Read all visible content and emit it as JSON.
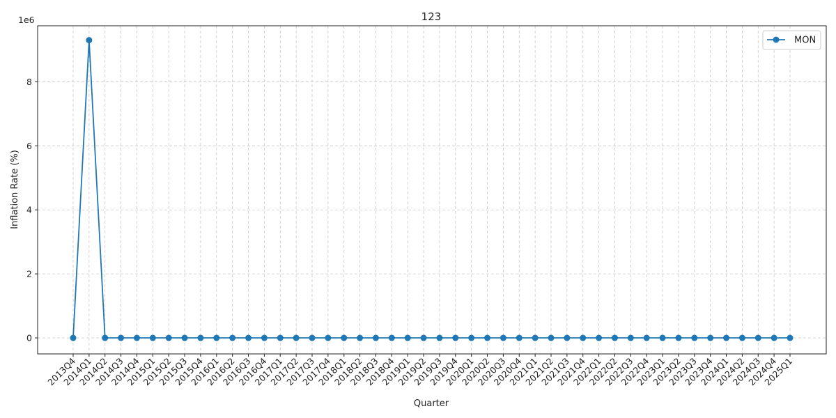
{
  "chart_data": {
    "type": "line",
    "title": "123",
    "xlabel": "Quarter",
    "ylabel": "Inflation Rate (%)",
    "y_multiplier_label": "1e6",
    "y_multiplier": 1000000,
    "ylim": [
      -500000,
      9750000
    ],
    "yticks": [
      0,
      2000000,
      4000000,
      6000000,
      8000000
    ],
    "ytick_labels": [
      "0",
      "2",
      "4",
      "6",
      "8"
    ],
    "grid": true,
    "legend_position": "top-right",
    "categories": [
      "2013Q4",
      "2014Q1",
      "2014Q2",
      "2014Q3",
      "2014Q4",
      "2015Q1",
      "2015Q2",
      "2015Q3",
      "2015Q4",
      "2016Q1",
      "2016Q2",
      "2016Q3",
      "2016Q4",
      "2017Q1",
      "2017Q2",
      "2017Q3",
      "2017Q4",
      "2018Q1",
      "2018Q2",
      "2018Q3",
      "2018Q4",
      "2019Q1",
      "2019Q2",
      "2019Q3",
      "2019Q4",
      "2020Q1",
      "2020Q2",
      "2020Q3",
      "2020Q4",
      "2021Q1",
      "2021Q2",
      "2021Q3",
      "2021Q4",
      "2022Q1",
      "2022Q2",
      "2022Q3",
      "2022Q4",
      "2023Q1",
      "2023Q2",
      "2023Q3",
      "2023Q4",
      "2024Q1",
      "2024Q2",
      "2024Q3",
      "2024Q4",
      "2025Q1"
    ],
    "series": [
      {
        "name": "MON",
        "color": "#1f77b4",
        "values": [
          0,
          9300000,
          0,
          0,
          0,
          0,
          0,
          0,
          0,
          0,
          0,
          0,
          0,
          0,
          0,
          0,
          0,
          0,
          0,
          0,
          0,
          0,
          0,
          0,
          0,
          0,
          0,
          0,
          0,
          0,
          0,
          0,
          0,
          0,
          0,
          0,
          0,
          0,
          0,
          0,
          0,
          0,
          0,
          0,
          0,
          0
        ]
      }
    ]
  }
}
